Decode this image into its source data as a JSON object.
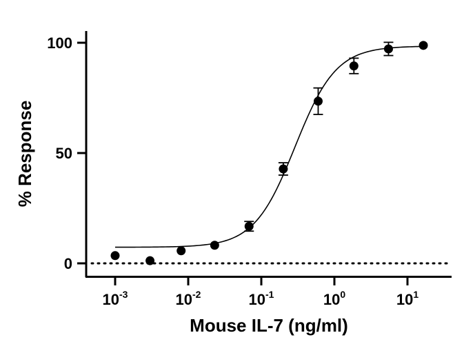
{
  "chart_data": {
    "type": "scatter",
    "xlabel": "Mouse IL-7 (ng/ml)",
    "ylabel": "% Response",
    "x_scale": "log",
    "xlim": [
      0.0004,
      40
    ],
    "ylim": [
      -4,
      105
    ],
    "x_ticks": [
      {
        "value": 0.001,
        "base": "10",
        "exp": "-3"
      },
      {
        "value": 0.01,
        "base": "10",
        "exp": "-2"
      },
      {
        "value": 0.1,
        "base": "10",
        "exp": "-1"
      },
      {
        "value": 1,
        "base": "10",
        "exp": "0"
      },
      {
        "value": 10,
        "base": "10",
        "exp": "1"
      }
    ],
    "y_ticks": [
      {
        "value": 0,
        "label": "0"
      },
      {
        "value": 50,
        "label": "50"
      },
      {
        "value": 100,
        "label": "100"
      }
    ],
    "baseline_y": 0,
    "points": [
      {
        "x": 0.001,
        "y": 3.5,
        "err": 0
      },
      {
        "x": 0.003,
        "y": 1.2,
        "err": 0
      },
      {
        "x": 0.008,
        "y": 5.7,
        "err": 0
      },
      {
        "x": 0.023,
        "y": 8.2,
        "err": 0
      },
      {
        "x": 0.068,
        "y": 16.8,
        "err": 2.2
      },
      {
        "x": 0.2,
        "y": 42.8,
        "err": 2.8
      },
      {
        "x": 0.6,
        "y": 73.5,
        "err": 6.0
      },
      {
        "x": 1.85,
        "y": 89.5,
        "err": 3.5
      },
      {
        "x": 5.5,
        "y": 97.2,
        "err": 3.0
      },
      {
        "x": 16.5,
        "y": 98.8,
        "err": 0
      }
    ],
    "fit": {
      "bottom": 7.3,
      "top": 98.5,
      "ec50": 0.29,
      "hill": 1.55,
      "x_range": [
        0.001,
        16.5
      ]
    },
    "grid": false,
    "legend": "none"
  }
}
